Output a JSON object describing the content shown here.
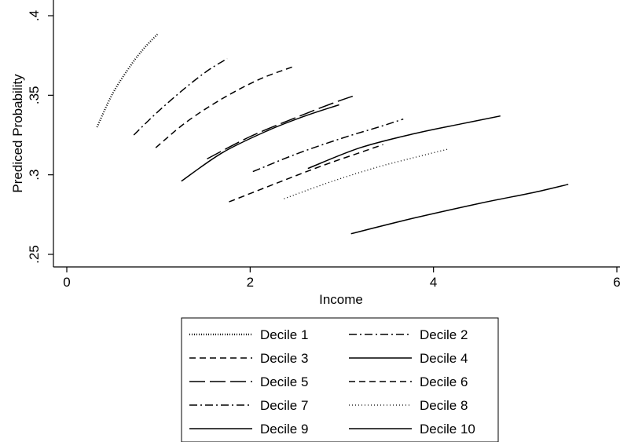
{
  "chart_data": {
    "type": "line",
    "title": "",
    "xlabel": "Income",
    "ylabel": "Prediced Probability",
    "xlim": [
      0,
      6
    ],
    "ylim": [
      0.25,
      0.4
    ],
    "xticks": [
      0,
      2,
      4,
      6
    ],
    "xtick_labels": [
      "0",
      "2",
      "4",
      "6"
    ],
    "yticks": [
      0.25,
      0.3,
      0.35,
      0.4
    ],
    "ytick_labels": [
      ".25",
      ".3",
      ".35",
      ".4"
    ],
    "grid": false,
    "legend_position": "bottom",
    "series": [
      {
        "name": "Decile 1",
        "style": "dotted-dense",
        "x": [
          0.33,
          0.5,
          0.7,
          0.85,
          1.0
        ],
        "y": [
          0.33,
          0.351,
          0.369,
          0.38,
          0.389
        ]
      },
      {
        "name": "Decile 2",
        "style": "dash-dot",
        "x": [
          0.73,
          1.0,
          1.3,
          1.55,
          1.75
        ],
        "y": [
          0.325,
          0.34,
          0.355,
          0.366,
          0.373
        ]
      },
      {
        "name": "Decile 3",
        "style": "short-dash",
        "x": [
          0.97,
          1.3,
          1.7,
          2.1,
          2.47
        ],
        "y": [
          0.317,
          0.333,
          0.348,
          0.36,
          0.368
        ]
      },
      {
        "name": "Decile 4",
        "style": "solid",
        "x": [
          1.25,
          1.7,
          2.2,
          2.6,
          2.97
        ],
        "y": [
          0.296,
          0.314,
          0.328,
          0.337,
          0.344
        ]
      },
      {
        "name": "Decile 5",
        "style": "long-dash",
        "x": [
          1.53,
          2.0,
          2.5,
          2.9,
          3.15
        ],
        "y": [
          0.31,
          0.324,
          0.336,
          0.345,
          0.35
        ]
      },
      {
        "name": "Decile 6",
        "style": "short-dash",
        "x": [
          1.77,
          2.3,
          2.8,
          3.2,
          3.45
        ],
        "y": [
          0.283,
          0.295,
          0.306,
          0.314,
          0.319
        ]
      },
      {
        "name": "Decile 7",
        "style": "dash-dot",
        "x": [
          2.03,
          2.5,
          3.0,
          3.4,
          3.67
        ],
        "y": [
          0.302,
          0.313,
          0.323,
          0.33,
          0.335
        ]
      },
      {
        "name": "Decile 8",
        "style": "dotted",
        "x": [
          2.37,
          2.9,
          3.4,
          3.8,
          4.15
        ],
        "y": [
          0.285,
          0.296,
          0.305,
          0.311,
          0.316
        ]
      },
      {
        "name": "Decile 9",
        "style": "solid",
        "x": [
          2.63,
          3.2,
          3.8,
          4.3,
          4.73
        ],
        "y": [
          0.304,
          0.317,
          0.326,
          0.332,
          0.337
        ]
      },
      {
        "name": "Decile 10",
        "style": "solid",
        "x": [
          3.1,
          3.8,
          4.5,
          5.1,
          5.47
        ],
        "y": [
          0.263,
          0.273,
          0.282,
          0.289,
          0.294
        ]
      }
    ]
  }
}
